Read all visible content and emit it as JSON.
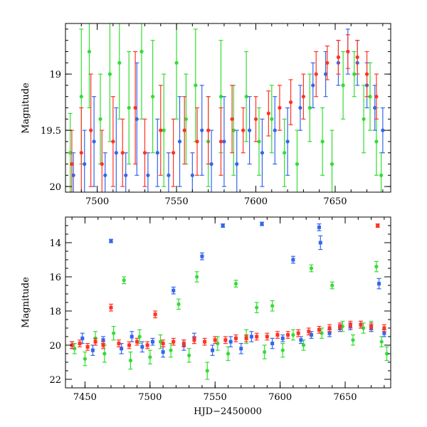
{
  "chart_data": [
    {
      "type": "scatter",
      "panel": "top",
      "title": "",
      "xlabel": "",
      "ylabel": "Magnitude",
      "xlim": [
        7480,
        7685
      ],
      "ylim": [
        20.05,
        18.55
      ],
      "y_inverted": true,
      "x_ticks_major": [
        7500,
        7550,
        7600,
        7650
      ],
      "y_ticks_major": [
        19,
        19.5,
        20
      ],
      "y_tick_labels": [
        "19",
        "19.5",
        "20"
      ],
      "legend": "none",
      "grid": false,
      "series": [
        {
          "color": "#33dd33",
          "marker": "circle-errorbar",
          "points": [
            [
              7483,
              19.7,
              0.35
            ],
            [
              7490,
              19.2,
              0.6
            ],
            [
              7495,
              18.8,
              0.5
            ],
            [
              7502,
              19.4,
              0.4
            ],
            [
              7508,
              19.0,
              0.6
            ],
            [
              7514,
              18.9,
              0.5
            ],
            [
              7520,
              19.3,
              0.5
            ],
            [
              7528,
              18.8,
              0.6
            ],
            [
              7535,
              19.2,
              0.5
            ],
            [
              7542,
              19.5,
              0.5
            ],
            [
              7550,
              18.9,
              0.5
            ],
            [
              7556,
              19.4,
              0.4
            ],
            [
              7562,
              19.1,
              0.5
            ],
            [
              7570,
              19.6,
              0.4
            ],
            [
              7578,
              19.2,
              0.5
            ],
            [
              7586,
              19.5,
              0.4
            ],
            [
              7594,
              19.2,
              0.4
            ],
            [
              7602,
              19.6,
              0.3
            ],
            [
              7610,
              19.4,
              0.3
            ],
            [
              7618,
              19.7,
              0.3
            ],
            [
              7626,
              19.8,
              0.3
            ],
            [
              7634,
              19.3,
              0.3
            ],
            [
              7642,
              19.6,
              0.3
            ],
            [
              7648,
              19.8,
              0.3
            ],
            [
              7655,
              19.1,
              0.3
            ],
            [
              7662,
              19.0,
              0.2
            ],
            [
              7668,
              19.4,
              0.3
            ],
            [
              7672,
              19.2,
              0.3
            ],
            [
              7676,
              19.6,
              0.3
            ],
            [
              7679,
              19.9,
              0.2
            ]
          ]
        },
        {
          "color": "#3366ee",
          "marker": "circle-errorbar",
          "points": [
            [
              7485,
              19.9,
              0.2
            ],
            [
              7492,
              19.8,
              0.3
            ],
            [
              7498,
              19.6,
              0.4
            ],
            [
              7505,
              19.9,
              0.2
            ],
            [
              7512,
              19.7,
              0.4
            ],
            [
              7518,
              19.9,
              0.2
            ],
            [
              7525,
              19.4,
              0.5
            ],
            [
              7532,
              19.9,
              0.2
            ],
            [
              7538,
              19.7,
              0.3
            ],
            [
              7545,
              19.9,
              0.2
            ],
            [
              7552,
              19.6,
              0.4
            ],
            [
              7560,
              19.9,
              0.2
            ],
            [
              7566,
              19.5,
              0.4
            ],
            [
              7572,
              19.8,
              0.3
            ],
            [
              7580,
              19.6,
              0.4
            ],
            [
              7588,
              19.8,
              0.3
            ],
            [
              7596,
              19.5,
              0.3
            ],
            [
              7604,
              19.7,
              0.3
            ],
            [
              7612,
              19.5,
              0.3
            ],
            [
              7620,
              19.6,
              0.3
            ],
            [
              7628,
              19.3,
              0.2
            ],
            [
              7636,
              19.1,
              0.2
            ],
            [
              7644,
              19.0,
              0.2
            ],
            [
              7652,
              18.9,
              0.2
            ],
            [
              7658,
              18.8,
              0.2
            ],
            [
              7664,
              18.9,
              0.2
            ],
            [
              7670,
              19.1,
              0.2
            ],
            [
              7675,
              19.3,
              0.2
            ],
            [
              7680,
              19.5,
              0.2
            ]
          ]
        },
        {
          "color": "#ff3322",
          "marker": "circle-errorbar",
          "points": [
            [
              7484,
              19.8,
              0.3
            ],
            [
              7490,
              19.7,
              0.4
            ],
            [
              7496,
              19.5,
              0.5
            ],
            [
              7503,
              19.8,
              0.3
            ],
            [
              7510,
              19.6,
              0.4
            ],
            [
              7516,
              19.7,
              0.3
            ],
            [
              7524,
              19.3,
              0.5
            ],
            [
              7530,
              19.7,
              0.3
            ],
            [
              7540,
              19.5,
              0.4
            ],
            [
              7548,
              19.7,
              0.3
            ],
            [
              7555,
              19.5,
              0.3
            ],
            [
              7563,
              19.6,
              0.3
            ],
            [
              7570,
              19.5,
              0.3
            ],
            [
              7578,
              19.6,
              0.3
            ],
            [
              7585,
              19.4,
              0.3
            ],
            [
              7592,
              19.5,
              0.2
            ],
            [
              7600,
              19.4,
              0.2
            ],
            [
              7608,
              19.35,
              0.2
            ],
            [
              7615,
              19.3,
              0.2
            ],
            [
              7622,
              19.25,
              0.2
            ],
            [
              7630,
              19.2,
              0.2
            ],
            [
              7638,
              19.0,
              0.2
            ],
            [
              7645,
              18.9,
              0.15
            ],
            [
              7652,
              18.85,
              0.15
            ],
            [
              7658,
              18.8,
              0.15
            ],
            [
              7664,
              18.85,
              0.15
            ],
            [
              7670,
              19.0,
              0.2
            ],
            [
              7676,
              19.2,
              0.2
            ]
          ]
        }
      ]
    },
    {
      "type": "scatter",
      "panel": "bottom",
      "title": "",
      "xlabel": "HJD−2450000",
      "ylabel": "Magnitude",
      "xlim": [
        7435,
        7685
      ],
      "ylim": [
        22.5,
        12.5
      ],
      "y_inverted": true,
      "x_ticks_major": [
        7450,
        7500,
        7550,
        7600,
        7650
      ],
      "y_ticks_major": [
        14,
        16,
        18,
        20,
        22
      ],
      "legend": "none",
      "grid": false,
      "series": [
        {
          "color": "#33dd33",
          "marker": "circle-errorbar",
          "points": [
            [
              7442,
              20.2,
              0.3
            ],
            [
              7450,
              20.8,
              0.4
            ],
            [
              7458,
              19.6,
              0.4
            ],
            [
              7465,
              20.5,
              0.5
            ],
            [
              7472,
              19.3,
              0.4
            ],
            [
              7480,
              16.2,
              0.2
            ],
            [
              7485,
              20.9,
              0.5
            ],
            [
              7492,
              19.5,
              0.4
            ],
            [
              7500,
              20.7,
              0.4
            ],
            [
              7508,
              19.8,
              0.4
            ],
            [
              7516,
              20.3,
              0.4
            ],
            [
              7522,
              17.6,
              0.3
            ],
            [
              7530,
              20.6,
              0.4
            ],
            [
              7536,
              16.0,
              0.3
            ],
            [
              7544,
              21.5,
              0.5
            ],
            [
              7552,
              19.9,
              0.4
            ],
            [
              7560,
              20.5,
              0.4
            ],
            [
              7566,
              16.4,
              0.2
            ],
            [
              7574,
              19.5,
              0.4
            ],
            [
              7582,
              17.8,
              0.3
            ],
            [
              7588,
              20.4,
              0.4
            ],
            [
              7594,
              17.7,
              0.3
            ],
            [
              7602,
              20.3,
              0.4
            ],
            [
              7610,
              19.4,
              0.3
            ],
            [
              7618,
              20.0,
              0.3
            ],
            [
              7624,
              15.5,
              0.2
            ],
            [
              7632,
              19.3,
              0.3
            ],
            [
              7640,
              16.5,
              0.2
            ],
            [
              7648,
              18.9,
              0.3
            ],
            [
              7656,
              19.7,
              0.3
            ],
            [
              7664,
              19.0,
              0.3
            ],
            [
              7670,
              18.9,
              0.3
            ],
            [
              7674,
              15.4,
              0.3
            ],
            [
              7678,
              19.8,
              0.3
            ],
            [
              7682,
              20.5,
              0.4
            ]
          ]
        },
        {
          "color": "#3366ee",
          "marker": "square-errorbar",
          "points": [
            [
              7440,
              20.0,
              0.2
            ],
            [
              7448,
              19.6,
              0.3
            ],
            [
              7456,
              20.3,
              0.3
            ],
            [
              7464,
              19.7,
              0.2
            ],
            [
              7470,
              13.9,
              0.1
            ],
            [
              7478,
              20.2,
              0.3
            ],
            [
              7486,
              19.5,
              0.3
            ],
            [
              7494,
              20.1,
              0.3
            ],
            [
              7502,
              19.8,
              0.2
            ],
            [
              7510,
              20.4,
              0.3
            ],
            [
              7518,
              16.8,
              0.2
            ],
            [
              7526,
              20.0,
              0.3
            ],
            [
              7534,
              19.6,
              0.3
            ],
            [
              7540,
              14.8,
              0.2
            ],
            [
              7548,
              20.3,
              0.3
            ],
            [
              7556,
              13.0,
              0.1
            ],
            [
              7562,
              19.8,
              0.3
            ],
            [
              7570,
              20.2,
              0.3
            ],
            [
              7578,
              19.5,
              0.3
            ],
            [
              7586,
              12.9,
              0.1
            ],
            [
              7594,
              19.9,
              0.3
            ],
            [
              7602,
              19.6,
              0.2
            ],
            [
              7610,
              15.0,
              0.2
            ],
            [
              7616,
              19.7,
              0.2
            ],
            [
              7624,
              19.4,
              0.2
            ],
            [
              7630,
              13.1,
              0.2
            ],
            [
              7631,
              14.0,
              0.4
            ],
            [
              7638,
              19.3,
              0.2
            ],
            [
              7646,
              19.0,
              0.2
            ],
            [
              7654,
              18.9,
              0.2
            ],
            [
              7662,
              18.8,
              0.2
            ],
            [
              7670,
              19.0,
              0.2
            ],
            [
              7676,
              16.4,
              0.3
            ],
            [
              7680,
              19.3,
              0.2
            ]
          ]
        },
        {
          "color": "#ff3322",
          "marker": "square-errorbar",
          "points": [
            [
              7440,
              20.0,
              0.2
            ],
            [
              7446,
              19.9,
              0.2
            ],
            [
              7452,
              20.1,
              0.2
            ],
            [
              7458,
              19.8,
              0.2
            ],
            [
              7464,
              20.0,
              0.2
            ],
            [
              7470,
              17.8,
              0.2
            ],
            [
              7476,
              19.9,
              0.2
            ],
            [
              7484,
              20.0,
              0.2
            ],
            [
              7490,
              19.8,
              0.2
            ],
            [
              7498,
              20.0,
              0.2
            ],
            [
              7504,
              18.2,
              0.2
            ],
            [
              7510,
              19.9,
              0.2
            ],
            [
              7518,
              19.8,
              0.2
            ],
            [
              7526,
              19.9,
              0.2
            ],
            [
              7534,
              19.7,
              0.2
            ],
            [
              7542,
              19.8,
              0.2
            ],
            [
              7550,
              19.7,
              0.2
            ],
            [
              7558,
              19.7,
              0.2
            ],
            [
              7566,
              19.6,
              0.2
            ],
            [
              7574,
              19.6,
              0.2
            ],
            [
              7582,
              19.5,
              0.2
            ],
            [
              7590,
              19.5,
              0.2
            ],
            [
              7598,
              19.4,
              0.2
            ],
            [
              7606,
              19.4,
              0.2
            ],
            [
              7614,
              19.3,
              0.2
            ],
            [
              7622,
              19.2,
              0.2
            ],
            [
              7630,
              19.1,
              0.2
            ],
            [
              7638,
              19.0,
              0.2
            ],
            [
              7646,
              18.9,
              0.2
            ],
            [
              7654,
              18.8,
              0.2
            ],
            [
              7662,
              18.8,
              0.2
            ],
            [
              7670,
              18.9,
              0.2
            ],
            [
              7675,
              13.0,
              0.1
            ],
            [
              7680,
              19.0,
              0.2
            ]
          ]
        }
      ]
    }
  ]
}
